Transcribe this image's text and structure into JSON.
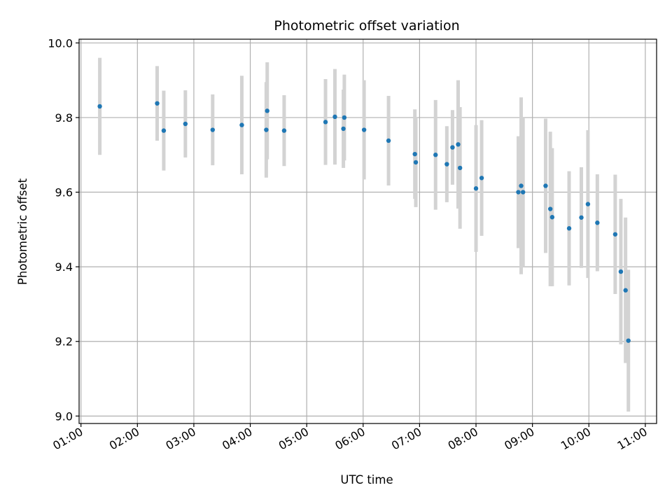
{
  "chart_data": {
    "type": "scatter",
    "title": "Photometric offset variation",
    "xlabel": "UTC time",
    "ylabel": "Photometric offset",
    "x_tick_labels": [
      "01:00",
      "02:00",
      "03:00",
      "04:00",
      "05:00",
      "06:00",
      "07:00",
      "08:00",
      "09:00",
      "10:00",
      "11:00"
    ],
    "y_tick_labels": [
      "9.0",
      "9.2",
      "9.4",
      "9.6",
      "9.8",
      "10.0"
    ],
    "xlim": [
      "00:58",
      "11:12"
    ],
    "ylim": [
      8.98,
      10.01
    ],
    "grid": true,
    "marker_color": "#1f77b4",
    "errorbar_color": "#d3d3d3",
    "points": [
      {
        "x": "01:20",
        "y": 9.83,
        "err": 0.13
      },
      {
        "x": "02:21",
        "y": 9.838,
        "err": 0.1
      },
      {
        "x": "02:28",
        "y": 9.765,
        "err": 0.107
      },
      {
        "x": "02:51",
        "y": 9.783,
        "err": 0.09
      },
      {
        "x": "03:20",
        "y": 9.767,
        "err": 0.095
      },
      {
        "x": "03:51",
        "y": 9.78,
        "err": 0.132
      },
      {
        "x": "04:17",
        "y": 9.767,
        "err": 0.128
      },
      {
        "x": "04:18",
        "y": 9.818,
        "err": 0.13
      },
      {
        "x": "04:36",
        "y": 9.765,
        "err": 0.095
      },
      {
        "x": "05:20",
        "y": 9.788,
        "err": 0.115
      },
      {
        "x": "05:30",
        "y": 9.802,
        "err": 0.128
      },
      {
        "x": "05:39",
        "y": 9.77,
        "err": 0.105
      },
      {
        "x": "05:40",
        "y": 9.8,
        "err": 0.115
      },
      {
        "x": "06:01",
        "y": 9.767,
        "err": 0.133
      },
      {
        "x": "06:27",
        "y": 9.738,
        "err": 0.12
      },
      {
        "x": "06:55",
        "y": 9.702,
        "err": 0.12
      },
      {
        "x": "06:56",
        "y": 9.68,
        "err": 0.12
      },
      {
        "x": "07:17",
        "y": 9.7,
        "err": 0.147
      },
      {
        "x": "07:29",
        "y": 9.675,
        "err": 0.102
      },
      {
        "x": "07:35",
        "y": 9.72,
        "err": 0.1
      },
      {
        "x": "07:41",
        "y": 9.728,
        "err": 0.172
      },
      {
        "x": "07:43",
        "y": 9.665,
        "err": 0.163
      },
      {
        "x": "08:00",
        "y": 9.61,
        "err": 0.17
      },
      {
        "x": "08:06",
        "y": 9.638,
        "err": 0.155
      },
      {
        "x": "08:45",
        "y": 9.6,
        "err": 0.15
      },
      {
        "x": "08:48",
        "y": 9.617,
        "err": 0.237
      },
      {
        "x": "08:50",
        "y": 9.6,
        "err": 0.2
      },
      {
        "x": "09:14",
        "y": 9.617,
        "err": 0.18
      },
      {
        "x": "09:19",
        "y": 9.555,
        "err": 0.207
      },
      {
        "x": "09:21",
        "y": 9.533,
        "err": 0.185
      },
      {
        "x": "09:39",
        "y": 9.503,
        "err": 0.153
      },
      {
        "x": "09:52",
        "y": 9.532,
        "err": 0.135
      },
      {
        "x": "09:59",
        "y": 9.568,
        "err": 0.198
      },
      {
        "x": "10:09",
        "y": 9.518,
        "err": 0.13
      },
      {
        "x": "10:28",
        "y": 9.487,
        "err": 0.16
      },
      {
        "x": "10:34",
        "y": 9.387,
        "err": 0.195
      },
      {
        "x": "10:39",
        "y": 9.337,
        "err": 0.195
      },
      {
        "x": "10:42",
        "y": 9.202,
        "err": 0.19
      }
    ]
  }
}
